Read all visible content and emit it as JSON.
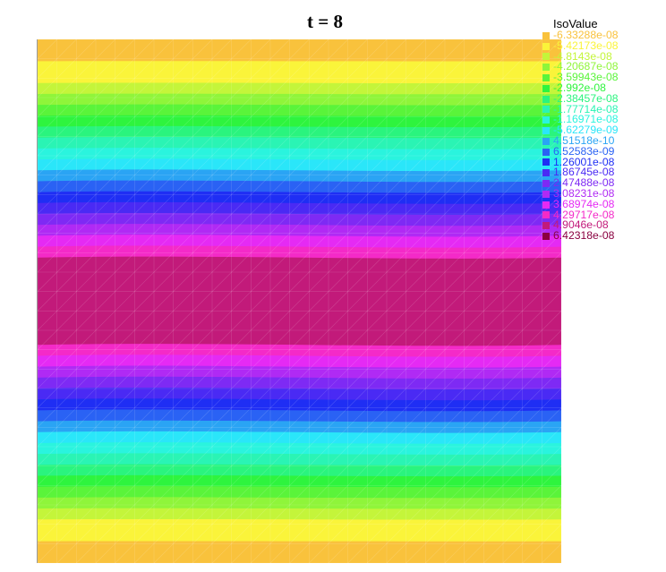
{
  "chart_data": {
    "type": "heatmap",
    "title": "t = 8",
    "legend_title": "IsoValue",
    "legend_placement": "top-right",
    "levels": [
      {
        "label": "-6.33288e-08",
        "value": -6.33288e-08,
        "color": "#f9c23c"
      },
      {
        "label": "-5.42173e-08",
        "value": -5.42173e-08,
        "color": "#faf43a"
      },
      {
        "label": "-4.8143e-08",
        "value": -4.8143e-08,
        "color": "#c4f53a"
      },
      {
        "label": "-4.20687e-08",
        "value": -4.20687e-08,
        "color": "#8ff53a"
      },
      {
        "label": "-3.59943e-08",
        "value": -3.59943e-08,
        "color": "#5af43a"
      },
      {
        "label": "-2.992e-08",
        "value": -2.992e-08,
        "color": "#2ef43e"
      },
      {
        "label": "-2.38457e-08",
        "value": -2.38457e-08,
        "color": "#2af47e"
      },
      {
        "label": "-1.77714e-08",
        "value": -1.77714e-08,
        "color": "#2af4b4"
      },
      {
        "label": "-1.16971e-08",
        "value": -1.16971e-08,
        "color": "#2af4de"
      },
      {
        "label": "-5.62279e-09",
        "value": -5.62279e-09,
        "color": "#2ae6f9"
      },
      {
        "label": "4.51518e-10",
        "value": 4.51518e-10,
        "color": "#2aa4f4"
      },
      {
        "label": "6.52583e-09",
        "value": 6.52583e-09,
        "color": "#2a62f4"
      },
      {
        "label": "1.26001e-08",
        "value": 1.26001e-08,
        "color": "#1f2ef4"
      },
      {
        "label": "1.86745e-08",
        "value": 1.86745e-08,
        "color": "#4a2af4"
      },
      {
        "label": "2.47488e-08",
        "value": 2.47488e-08,
        "color": "#7e2af4"
      },
      {
        "label": "3.08231e-08",
        "value": 3.08231e-08,
        "color": "#b02af4"
      },
      {
        "label": "3.68974e-08",
        "value": 3.68974e-08,
        "color": "#e52af4"
      },
      {
        "label": "4.29717e-08",
        "value": 4.29717e-08,
        "color": "#f42ac8"
      },
      {
        "label": "4.9046e-08",
        "value": 4.9046e-08,
        "color": "#c21a7a"
      },
      {
        "label": "6.42318e-08",
        "value": 6.42318e-08,
        "color": "#8a0040"
      }
    ],
    "band_levels_top_to_bottom": [
      0,
      0,
      1,
      1,
      2,
      3,
      4,
      5,
      6,
      7,
      8,
      9,
      10,
      11,
      12,
      13,
      14,
      15,
      16,
      17,
      18,
      18,
      18,
      18,
      18,
      18,
      18,
      18,
      17,
      16,
      15,
      14,
      13,
      12,
      11,
      10,
      9,
      8,
      7,
      6,
      5,
      4,
      3,
      2,
      1,
      1,
      0,
      0
    ],
    "grid": true
  }
}
